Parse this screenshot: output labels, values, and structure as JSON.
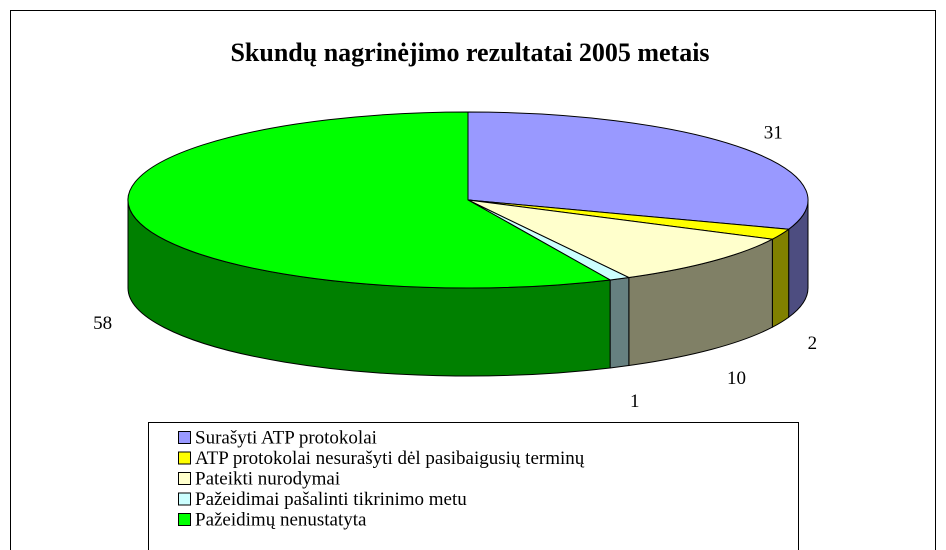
{
  "chart_data": {
    "type": "pie",
    "title": "Skundų nagrinėjimo rezultatai 2005 metais",
    "categories": [
      "Surašyti ATP protokolai",
      "ATP protokolai nesurašyti dėl pasibaigusių terminų",
      "Pateikti nurodymai",
      "Pažeidimai pašalinti tikrinimo metu",
      "Pažeidimų nenustatyta"
    ],
    "values": [
      31,
      2,
      10,
      1,
      58
    ],
    "colors": [
      "#9999ff",
      "#ffff00",
      "#ffffcc",
      "#ccffff",
      "#00ff00"
    ],
    "legend": "bottom"
  }
}
